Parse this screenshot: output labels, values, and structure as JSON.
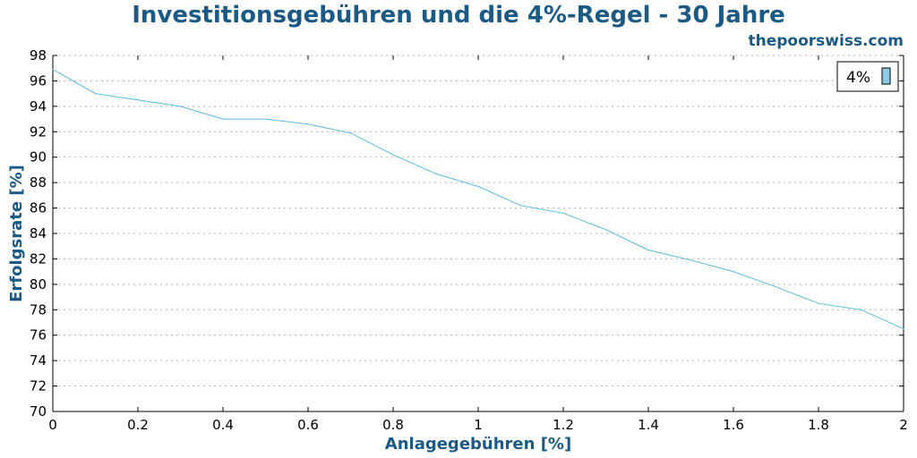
{
  "title": "Investitionsgebühren und die 4%-Regel - 30 Jahre",
  "subtitle": "thepoorswiss.com",
  "colors": {
    "title": "#1a5a85",
    "line": "#5bb8dd",
    "legend_swatch": "#8ecae6",
    "grid": "#b0b0b0"
  },
  "chart_data": {
    "type": "line",
    "title": "Investitionsgebühren und die 4%-Regel - 30 Jahre",
    "xlabel": "Anlagegebühren [%]",
    "ylabel": "Erfolgsrate [%]",
    "xlim": [
      0,
      2
    ],
    "ylim": [
      70,
      98
    ],
    "x_ticks": [
      "0",
      "0.2",
      "0.4",
      "0.6",
      "0.8",
      "1",
      "1.2",
      "1.4",
      "1.6",
      "1.8",
      "2"
    ],
    "y_ticks": [
      "70",
      "72",
      "74",
      "76",
      "78",
      "80",
      "82",
      "84",
      "86",
      "88",
      "90",
      "92",
      "94",
      "96",
      "98"
    ],
    "grid": true,
    "legend_position": "top-right",
    "series": [
      {
        "name": "4%",
        "x": [
          0,
          0.1,
          0.2,
          0.3,
          0.4,
          0.5,
          0.6,
          0.7,
          0.8,
          0.9,
          1.0,
          1.1,
          1.2,
          1.3,
          1.4,
          1.5,
          1.6,
          1.7,
          1.8,
          1.9,
          2.0
        ],
        "values": [
          96.9,
          95.0,
          94.5,
          94.0,
          93.0,
          93.0,
          92.6,
          91.9,
          90.2,
          88.7,
          87.7,
          86.2,
          85.6,
          84.3,
          82.7,
          81.9,
          81.0,
          79.8,
          78.5,
          78.0,
          76.5
        ]
      }
    ]
  }
}
